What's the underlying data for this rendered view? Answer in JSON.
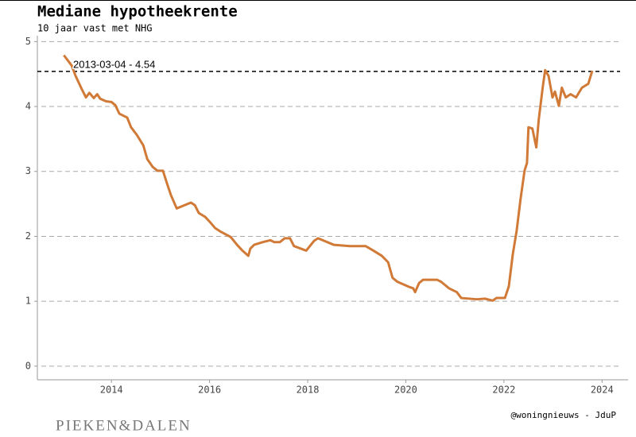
{
  "chart_data": {
    "type": "line",
    "title": "Mediane hypotheekrente",
    "subtitle": "10 jaar vast met NHG",
    "x": [
      2013.03,
      2013.19,
      2013.27,
      2013.4,
      2013.48,
      2013.55,
      2013.64,
      2013.71,
      2013.77,
      2013.89,
      2014.0,
      2014.08,
      2014.16,
      2014.32,
      2014.4,
      2014.52,
      2014.65,
      2014.73,
      2014.84,
      2014.94,
      2015.05,
      2015.13,
      2015.21,
      2015.33,
      2015.49,
      2015.62,
      2015.7,
      2015.78,
      2015.91,
      2016.02,
      2016.11,
      2016.23,
      2016.43,
      2016.56,
      2016.67,
      2016.79,
      2016.83,
      2016.91,
      2017.08,
      2017.24,
      2017.32,
      2017.43,
      2017.53,
      2017.64,
      2017.72,
      2017.97,
      2018.13,
      2018.21,
      2018.53,
      2018.86,
      2019.18,
      2019.34,
      2019.51,
      2019.64,
      2019.73,
      2019.83,
      2020.07,
      2020.15,
      2020.19,
      2020.27,
      2020.35,
      2020.64,
      2020.72,
      2020.88,
      2021.04,
      2021.13,
      2021.45,
      2021.61,
      2021.77,
      2021.85,
      2022.02,
      2022.1,
      2022.18,
      2022.26,
      2022.34,
      2022.42,
      2022.47,
      2022.5,
      2022.58,
      2022.66,
      2022.71,
      2022.79,
      2022.84,
      2022.91,
      2022.99,
      2023.04,
      2023.12,
      2023.18,
      2023.26,
      2023.36,
      2023.47,
      2023.59,
      2023.72,
      2023.8
    ],
    "series": [
      {
        "color": "#d17a37",
        "values": [
          4.79,
          4.63,
          4.47,
          4.26,
          4.14,
          4.21,
          4.13,
          4.19,
          4.12,
          4.08,
          4.07,
          4.02,
          3.89,
          3.83,
          3.68,
          3.56,
          3.4,
          3.19,
          3.07,
          3.01,
          3.01,
          2.82,
          2.64,
          2.43,
          2.48,
          2.52,
          2.48,
          2.36,
          2.3,
          2.21,
          2.13,
          2.07,
          1.99,
          1.87,
          1.78,
          1.7,
          1.81,
          1.87,
          1.91,
          1.94,
          1.91,
          1.91,
          1.97,
          1.97,
          1.85,
          1.78,
          1.93,
          1.97,
          1.87,
          1.85,
          1.85,
          1.78,
          1.7,
          1.6,
          1.36,
          1.3,
          1.22,
          1.2,
          1.14,
          1.28,
          1.33,
          1.33,
          1.3,
          1.2,
          1.14,
          1.05,
          1.03,
          1.04,
          1.01,
          1.05,
          1.05,
          1.23,
          1.72,
          2.09,
          2.58,
          3.01,
          3.13,
          3.68,
          3.66,
          3.37,
          3.8,
          4.29,
          4.56,
          4.47,
          4.14,
          4.23,
          4.01,
          4.29,
          4.14,
          4.19,
          4.14,
          4.29,
          4.35,
          4.55
        ]
      }
    ],
    "xlim": [
      2012.49,
      2024.53
    ],
    "xticks": [
      2014,
      2016,
      2018,
      2020,
      2022,
      2024
    ],
    "ylim": [
      -0.21,
      5.09
    ],
    "yticks": [
      0,
      1,
      2,
      3,
      4,
      5
    ],
    "grid": true,
    "reference_line": {
      "value": 4.54,
      "label": "2013-03-04 - 4.54"
    },
    "credit": "@woningnieuws - JduP",
    "logo": "PIEKEN&DALEN"
  }
}
